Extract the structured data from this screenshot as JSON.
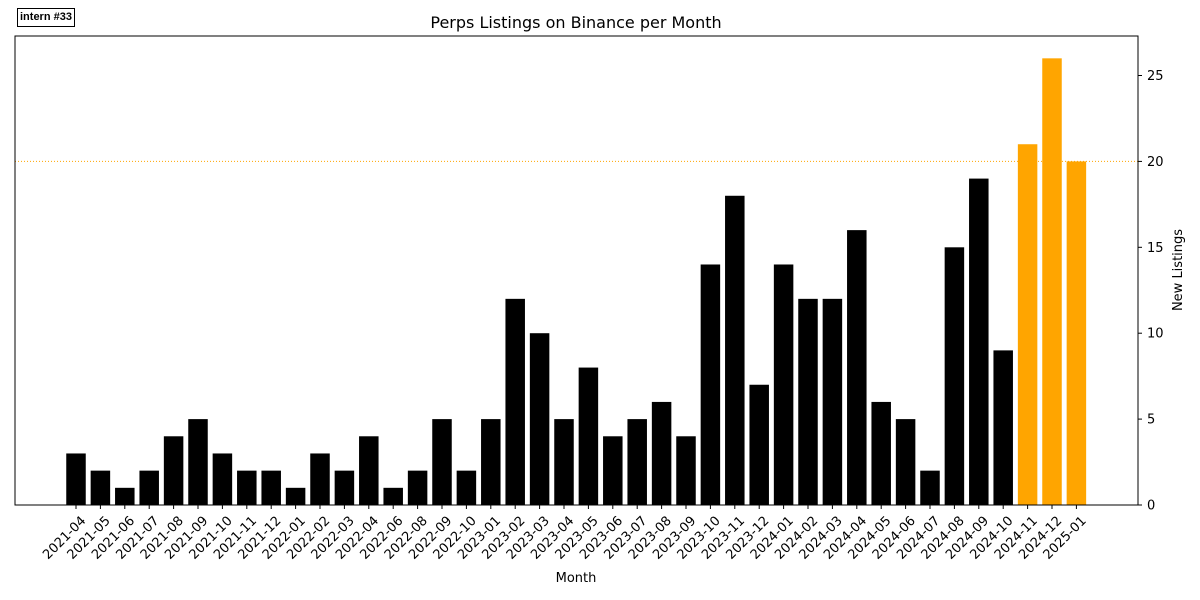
{
  "badge": "intern #33",
  "colors": {
    "normal": "#000000",
    "highlight": "#ffa500",
    "reference_line": "#ffa500"
  },
  "chart_data": {
    "type": "bar",
    "title": "Perps Listings on Binance per Month",
    "xlabel": "Month",
    "ylabel": "New Listings",
    "y_axis_side": "right",
    "ylim": [
      0,
      27.3
    ],
    "yticks": [
      0,
      5,
      10,
      15,
      20,
      25
    ],
    "reference_line": {
      "y": 20,
      "style": "dotted"
    },
    "grid": false,
    "categories": [
      "2021-04",
      "2021-05",
      "2021-06",
      "2021-07",
      "2021-08",
      "2021-09",
      "2021-10",
      "2021-11",
      "2021-12",
      "2022-01",
      "2022-02",
      "2022-03",
      "2022-04",
      "2022-06",
      "2022-08",
      "2022-09",
      "2022-10",
      "2023-01",
      "2023-02",
      "2023-03",
      "2023-04",
      "2023-05",
      "2023-06",
      "2023-07",
      "2023-08",
      "2023-09",
      "2023-10",
      "2023-11",
      "2023-12",
      "2024-01",
      "2024-02",
      "2024-03",
      "2024-04",
      "2024-05",
      "2024-06",
      "2024-07",
      "2024-08",
      "2024-09",
      "2024-10",
      "2024-11",
      "2024-12",
      "2025-01"
    ],
    "values": [
      3,
      2,
      1,
      2,
      4,
      5,
      3,
      2,
      2,
      1,
      3,
      2,
      4,
      1,
      2,
      5,
      2,
      5,
      12,
      10,
      5,
      8,
      4,
      5,
      6,
      4,
      14,
      18,
      7,
      14,
      12,
      12,
      16,
      6,
      5,
      2,
      15,
      19,
      9,
      21,
      26,
      20
    ],
    "highlighted": [
      "2024-11",
      "2024-12",
      "2025-01"
    ]
  }
}
